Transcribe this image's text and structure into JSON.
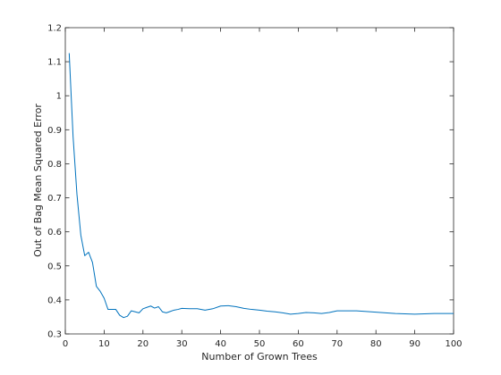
{
  "chart_data": {
    "type": "line",
    "title": "",
    "xlabel": "Number of Grown Trees",
    "ylabel": "Out of Bag Mean Squared Error",
    "xlim": [
      0,
      100
    ],
    "ylim": [
      0.3,
      1.2
    ],
    "xticks": [
      0,
      10,
      20,
      30,
      40,
      50,
      60,
      70,
      80,
      90,
      100
    ],
    "yticks": [
      0.3,
      0.4,
      0.5,
      0.6,
      0.7,
      0.8,
      0.9,
      1,
      1.1,
      1.2
    ],
    "grid": false,
    "line_color": "#0072bd",
    "series": [
      {
        "x": [
          1,
          2,
          3,
          4,
          5,
          6,
          7,
          8,
          9,
          10,
          11,
          12,
          13,
          14,
          15,
          16,
          17,
          18,
          19,
          20,
          21,
          22,
          23,
          24,
          25,
          26,
          27,
          28,
          29,
          30,
          32,
          34,
          36,
          38,
          40,
          42,
          44,
          46,
          48,
          50,
          52,
          54,
          56,
          58,
          60,
          62,
          64,
          66,
          68,
          70,
          75,
          80,
          85,
          90,
          95,
          100
        ],
        "y": [
          1.125,
          0.88,
          0.71,
          0.59,
          0.53,
          0.54,
          0.51,
          0.44,
          0.425,
          0.405,
          0.372,
          0.372,
          0.372,
          0.355,
          0.348,
          0.352,
          0.368,
          0.365,
          0.362,
          0.374,
          0.378,
          0.382,
          0.376,
          0.38,
          0.365,
          0.362,
          0.366,
          0.37,
          0.372,
          0.375,
          0.374,
          0.374,
          0.37,
          0.374,
          0.382,
          0.383,
          0.38,
          0.375,
          0.372,
          0.37,
          0.367,
          0.365,
          0.362,
          0.358,
          0.36,
          0.363,
          0.362,
          0.36,
          0.363,
          0.368,
          0.368,
          0.364,
          0.36,
          0.358,
          0.36,
          0.36
        ]
      }
    ]
  }
}
